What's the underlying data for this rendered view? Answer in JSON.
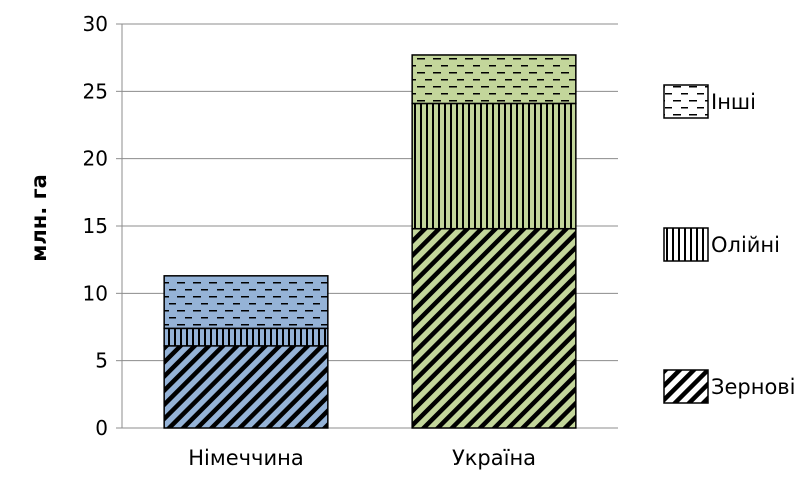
{
  "chart_data": {
    "type": "bar",
    "stacked": true,
    "categories": [
      "Німеччина",
      "Україна"
    ],
    "series": [
      {
        "name": "Зернові",
        "values": [
          6.1,
          14.8
        ],
        "pattern": "diagonal-hatch"
      },
      {
        "name": "Олійні",
        "values": [
          1.3,
          9.3
        ],
        "pattern": "vertical-lines"
      },
      {
        "name": "Інші",
        "values": [
          3.9,
          3.6
        ],
        "pattern": "horizontal-dashes"
      }
    ],
    "category_colors": [
      "#95b3d7",
      "#c3d69b"
    ],
    "ylabel": "млн. га",
    "xlabel": "",
    "ylim": [
      0,
      30
    ],
    "yticks": [
      0,
      5,
      10,
      15,
      20,
      25,
      30
    ],
    "grid": true,
    "legend_position": "right"
  }
}
